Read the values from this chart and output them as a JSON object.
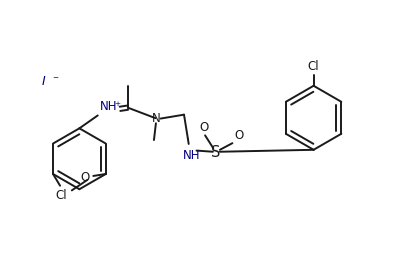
{
  "bg_color": "#ffffff",
  "line_color": "#1a1a1a",
  "bond_lw": 1.4,
  "blue_color": "#000080",
  "font_size": 8.5,
  "xlim": [
    0,
    10
  ],
  "ylim": [
    0,
    6.6
  ]
}
